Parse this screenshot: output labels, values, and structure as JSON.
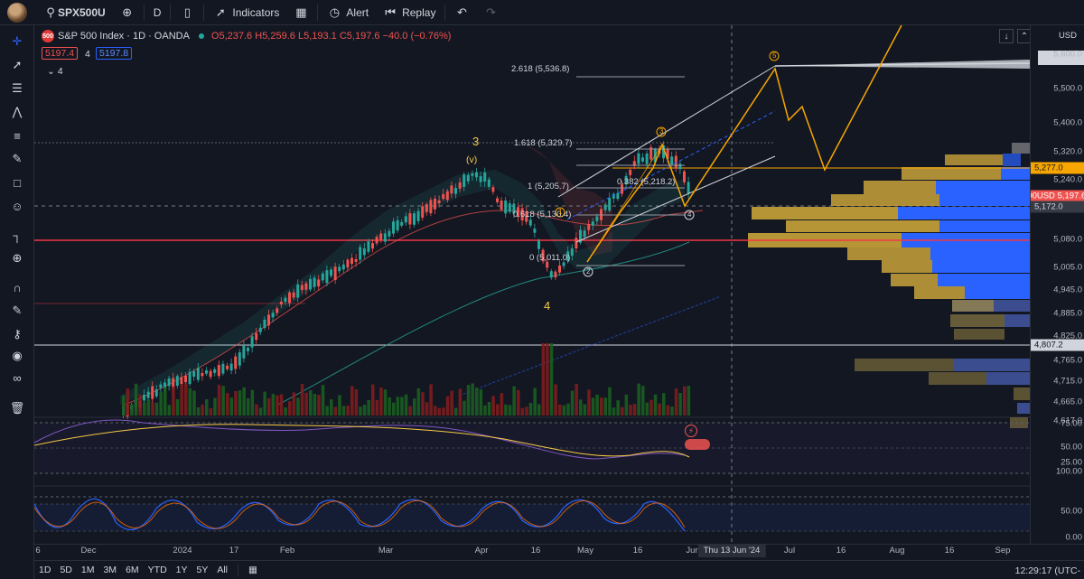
{
  "toolbar": {
    "symbol": "SPX500U",
    "interval": "D",
    "indicators": "Indicators",
    "alert": "Alert",
    "replay": "Replay"
  },
  "legend": {
    "title": "S&P 500 Index · 1D · OANDA",
    "o": "O5,237.6",
    "h": "H5,259.6",
    "l": "L5,193.1",
    "c": "C5,197.6",
    "chg": "−40.0 (−0.76%)",
    "bid": "5197.4",
    "spread": "4",
    "ask": "5197.8",
    "indicators_count": "4"
  },
  "fib": {
    "f2618": "2.618 (5,536.8)",
    "f1618": "1.618 (5,329.7)",
    "f1": "1 (5,205.7)",
    "f0382": "0.382 (5,218.2)",
    "f0618": "0.618 (5,130.4)",
    "f0": "0 (5,011.0)"
  },
  "waves": {
    "w3": "3",
    "wv": "(v)",
    "w4": "4",
    "c1": "1",
    "c2": "2",
    "c3": "3",
    "c4": "4",
    "c5": "5"
  },
  "price_axis": {
    "currency": "USD",
    "ticks": [
      "5,600.0",
      "5,500.0",
      "5,400.0",
      "5,320.0",
      "5,240.0",
      "5,080.0",
      "5,005.0",
      "4,945.0",
      "4,885.0",
      "4,825.0",
      "4,765.0",
      "4,715.0",
      "4,665.0",
      "4,617.0"
    ],
    "tag_5277": "5,277.0",
    "tag_symbol": "SPX500USD",
    "tag_last": "5,197.6",
    "tag_5172": "5,172.0",
    "tag_4807": "4,807.2"
  },
  "osc_axis": {
    "rsi": [
      "75.00",
      "50.00",
      "25.00"
    ],
    "stoch": [
      "100.00",
      "50.00",
      "0.00"
    ]
  },
  "time_axis": {
    "labels": [
      "6",
      "Dec",
      "2024",
      "17",
      "Feb",
      "Mar",
      "Apr",
      "16",
      "May",
      "16",
      "Jun",
      "Jul",
      "16",
      "Aug",
      "16",
      "Sep"
    ],
    "crosshair": "Thu 13 Jun '24"
  },
  "bottom": {
    "ranges": [
      "1D",
      "5D",
      "1M",
      "3M",
      "6M",
      "YTD",
      "1Y",
      "5Y",
      "All"
    ],
    "clock": "12:29:17 (UTC-"
  },
  "colors": {
    "up": "#26a69a",
    "down": "#ef5350",
    "wave": "#f7a600",
    "fib": "#9598a1"
  }
}
